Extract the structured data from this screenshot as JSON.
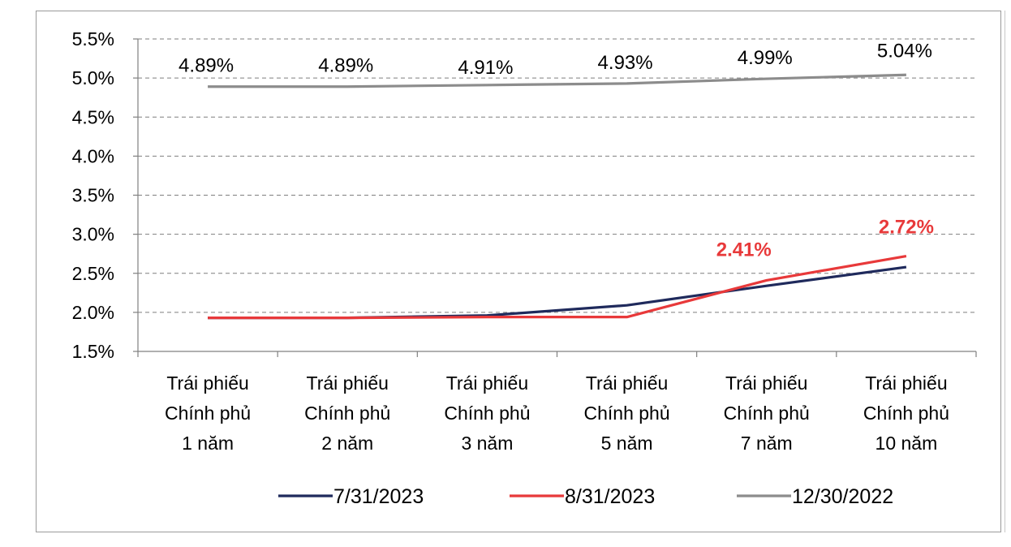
{
  "chart_data": {
    "type": "line",
    "title": "",
    "xlabel": "",
    "ylabel": "",
    "ylim": [
      1.5,
      5.5
    ],
    "y_tick_step": 0.5,
    "y_tick_labels": [
      "1.5%",
      "2.0%",
      "2.5%",
      "3.0%",
      "3.5%",
      "4.0%",
      "4.5%",
      "5.0%",
      "5.5%"
    ],
    "grid": true,
    "legend_position": "bottom",
    "categories": [
      [
        "Trái phiếu",
        "Chính phủ",
        "1 năm"
      ],
      [
        "Trái phiếu",
        "Chính phủ",
        "2 năm"
      ],
      [
        "Trái phiếu",
        "Chính phủ",
        "3 năm"
      ],
      [
        "Trái phiếu",
        "Chính phủ",
        "5 năm"
      ],
      [
        "Trái phiếu",
        "Chính phủ",
        "7 năm"
      ],
      [
        "Trái phiếu",
        "Chính phủ",
        "10 năm"
      ]
    ],
    "series": [
      {
        "name": "7/31/2023",
        "color": "#1f2a5c",
        "values": [
          1.93,
          1.93,
          1.96,
          2.09,
          2.34,
          2.58
        ],
        "labels": [
          "",
          "",
          "",
          "",
          "",
          ""
        ]
      },
      {
        "name": "8/31/2023",
        "color": "#e8393a",
        "values": [
          1.93,
          1.93,
          1.94,
          1.94,
          2.41,
          2.72
        ],
        "labels": [
          "",
          "",
          "",
          "",
          "2.41%",
          "2.72%"
        ]
      },
      {
        "name": "12/30/2022",
        "color": "#8c8c8c",
        "values": [
          4.89,
          4.89,
          4.91,
          4.93,
          4.99,
          5.04
        ],
        "labels": [
          "4.89%",
          "4.89%",
          "4.91%",
          "4.93%",
          "4.99%",
          "5.04%"
        ]
      }
    ]
  }
}
